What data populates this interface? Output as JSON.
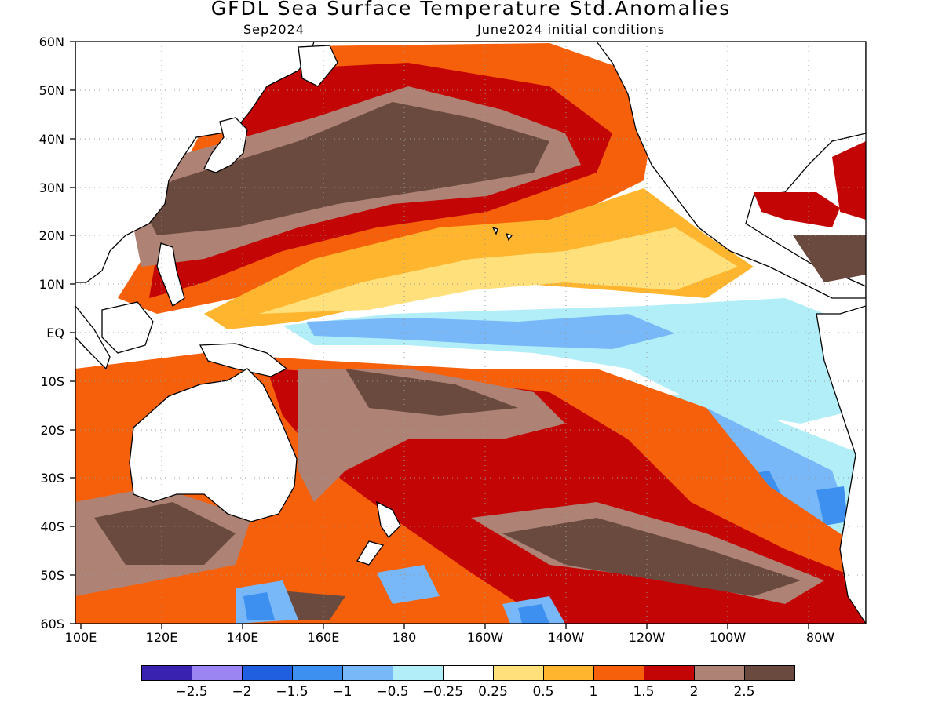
{
  "header": {
    "title": "GFDL Sea Surface Temperature Std.Anomalies",
    "valid_month": "Sep2024",
    "init": "June2024 initial conditions"
  },
  "axes": {
    "lat_labels": [
      "60N",
      "50N",
      "40N",
      "30N",
      "20N",
      "10N",
      "EQ",
      "10S",
      "20S",
      "30S",
      "40S",
      "50S",
      "60S"
    ],
    "lon_labels": [
      "100E",
      "120E",
      "140E",
      "160E",
      "180",
      "160W",
      "140W",
      "120W",
      "100W",
      "80W"
    ]
  },
  "colorbar": {
    "colors": [
      "#3a22b0",
      "#9a85f2",
      "#1f5fe0",
      "#3d8ff0",
      "#79b8f8",
      "#b2eef8",
      "#ffffff",
      "#ffe07a",
      "#ffb52d",
      "#f7600a",
      "#c30505",
      "#ae8376",
      "#6a4a3e"
    ],
    "labels": [
      "−2.5",
      "−2",
      "−1.5",
      "−1",
      "−0.5",
      "−0.25",
      "0.25",
      "0.5",
      "1",
      "1.5",
      "2",
      "2.5"
    ]
  },
  "map_semantics": {
    "region": "Pacific Ocean, 100E–70W, 60S–60N",
    "projection": "cylindrical equidistant",
    "land_color": "#ffffff",
    "grid": "dotted"
  }
}
